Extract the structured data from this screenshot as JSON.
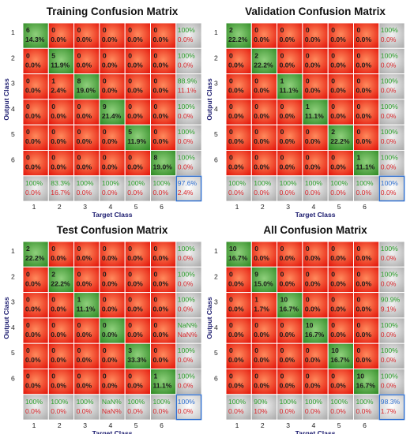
{
  "colors": {
    "correct": "#3a9b2c",
    "wrong": "#e8190c",
    "summary": "#b8b8b8",
    "overall_border": "#2e6fd0",
    "pct_green": "#2ca02c",
    "pct_red": "#d9262b",
    "axis_label": "#1a1a6e"
  },
  "chart_data": [
    {
      "type": "heatmap",
      "title": "Training Confusion Matrix",
      "xlabel": "Target Class",
      "ylabel": "Output Class",
      "x_ticks": [
        "1",
        "2",
        "3",
        "4",
        "5",
        "6"
      ],
      "y_ticks": [
        "1",
        "2",
        "3",
        "4",
        "5",
        "6"
      ],
      "counts": [
        [
          6,
          0,
          0,
          0,
          0,
          0
        ],
        [
          0,
          5,
          0,
          0,
          0,
          0
        ],
        [
          0,
          1,
          8,
          0,
          0,
          0
        ],
        [
          0,
          0,
          0,
          9,
          0,
          0
        ],
        [
          0,
          0,
          0,
          0,
          5,
          0
        ],
        [
          0,
          0,
          0,
          0,
          0,
          8
        ]
      ],
      "cell_pcts": [
        [
          "14.3%",
          "0.0%",
          "0.0%",
          "0.0%",
          "0.0%",
          "0.0%"
        ],
        [
          "0.0%",
          "11.9%",
          "0.0%",
          "0.0%",
          "0.0%",
          "0.0%"
        ],
        [
          "0.0%",
          "2.4%",
          "19.0%",
          "0.0%",
          "0.0%",
          "0.0%"
        ],
        [
          "0.0%",
          "0.0%",
          "0.0%",
          "21.4%",
          "0.0%",
          "0.0%"
        ],
        [
          "0.0%",
          "0.0%",
          "0.0%",
          "0.0%",
          "11.9%",
          "0.0%"
        ],
        [
          "0.0%",
          "0.0%",
          "0.0%",
          "0.0%",
          "0.0%",
          "19.0%"
        ]
      ],
      "row_summary": [
        [
          "100%",
          "0.0%"
        ],
        [
          "100%",
          "0.0%"
        ],
        [
          "88.9%",
          "11.1%"
        ],
        [
          "100%",
          "0.0%"
        ],
        [
          "100%",
          "0.0%"
        ],
        [
          "100%",
          "0.0%"
        ]
      ],
      "col_summary": [
        [
          "100%",
          "0.0%"
        ],
        [
          "83.3%",
          "16.7%"
        ],
        [
          "100%",
          "0.0%"
        ],
        [
          "100%",
          "0.0%"
        ],
        [
          "100%",
          "0.0%"
        ],
        [
          "100%",
          "0.0%"
        ]
      ],
      "overall": [
        "97.6%",
        "2.4%"
      ]
    },
    {
      "type": "heatmap",
      "title": "Validation Confusion Matrix",
      "xlabel": "Target Class",
      "ylabel": "Output Class",
      "x_ticks": [
        "1",
        "2",
        "3",
        "4",
        "5",
        "6"
      ],
      "y_ticks": [
        "1",
        "2",
        "3",
        "4",
        "5",
        "6"
      ],
      "counts": [
        [
          2,
          0,
          0,
          0,
          0,
          0
        ],
        [
          0,
          2,
          0,
          0,
          0,
          0
        ],
        [
          0,
          0,
          1,
          0,
          0,
          0
        ],
        [
          0,
          0,
          0,
          1,
          0,
          0
        ],
        [
          0,
          0,
          0,
          0,
          2,
          0
        ],
        [
          0,
          0,
          0,
          0,
          0,
          1
        ]
      ],
      "cell_pcts": [
        [
          "22.2%",
          "0.0%",
          "0.0%",
          "0.0%",
          "0.0%",
          "0.0%"
        ],
        [
          "0.0%",
          "22.2%",
          "0.0%",
          "0.0%",
          "0.0%",
          "0.0%"
        ],
        [
          "0.0%",
          "0.0%",
          "11.1%",
          "0.0%",
          "0.0%",
          "0.0%"
        ],
        [
          "0.0%",
          "0.0%",
          "0.0%",
          "11.1%",
          "0.0%",
          "0.0%"
        ],
        [
          "0.0%",
          "0.0%",
          "0.0%",
          "0.0%",
          "22.2%",
          "0.0%"
        ],
        [
          "0.0%",
          "0.0%",
          "0.0%",
          "0.0%",
          "0.0%",
          "11.1%"
        ]
      ],
      "row_summary": [
        [
          "100%",
          "0.0%"
        ],
        [
          "100%",
          "0.0%"
        ],
        [
          "100%",
          "0.0%"
        ],
        [
          "100%",
          "0.0%"
        ],
        [
          "100%",
          "0.0%"
        ],
        [
          "100%",
          "0.0%"
        ]
      ],
      "col_summary": [
        [
          "100%",
          "0.0%"
        ],
        [
          "100%",
          "0.0%"
        ],
        [
          "100%",
          "0.0%"
        ],
        [
          "100%",
          "0.0%"
        ],
        [
          "100%",
          "0.0%"
        ],
        [
          "100%",
          "0.0%"
        ]
      ],
      "overall": [
        "100%",
        "0.0%"
      ]
    },
    {
      "type": "heatmap",
      "title": "Test Confusion Matrix",
      "xlabel": "Target Class",
      "ylabel": "Output Class",
      "x_ticks": [
        "1",
        "2",
        "3",
        "4",
        "5",
        "6"
      ],
      "y_ticks": [
        "1",
        "2",
        "3",
        "4",
        "5",
        "6"
      ],
      "counts": [
        [
          2,
          0,
          0,
          0,
          0,
          0
        ],
        [
          0,
          2,
          0,
          0,
          0,
          0
        ],
        [
          0,
          0,
          1,
          0,
          0,
          0
        ],
        [
          0,
          0,
          0,
          0,
          0,
          0
        ],
        [
          0,
          0,
          0,
          0,
          3,
          0
        ],
        [
          0,
          0,
          0,
          0,
          0,
          1
        ]
      ],
      "cell_pcts": [
        [
          "22.2%",
          "0.0%",
          "0.0%",
          "0.0%",
          "0.0%",
          "0.0%"
        ],
        [
          "0.0%",
          "22.2%",
          "0.0%",
          "0.0%",
          "0.0%",
          "0.0%"
        ],
        [
          "0.0%",
          "0.0%",
          "11.1%",
          "0.0%",
          "0.0%",
          "0.0%"
        ],
        [
          "0.0%",
          "0.0%",
          "0.0%",
          "0.0%",
          "0.0%",
          "0.0%"
        ],
        [
          "0.0%",
          "0.0%",
          "0.0%",
          "0.0%",
          "33.3%",
          "0.0%"
        ],
        [
          "0.0%",
          "0.0%",
          "0.0%",
          "0.0%",
          "0.0%",
          "11.1%"
        ]
      ],
      "row_summary": [
        [
          "100%",
          "0.0%"
        ],
        [
          "100%",
          "0.0%"
        ],
        [
          "100%",
          "0.0%"
        ],
        [
          "NaN%",
          "NaN%"
        ],
        [
          "100%",
          "0.0%"
        ],
        [
          "100%",
          "0.0%"
        ]
      ],
      "col_summary": [
        [
          "100%",
          "0.0%"
        ],
        [
          "100%",
          "0.0%"
        ],
        [
          "100%",
          "0.0%"
        ],
        [
          "NaN%",
          "NaN%"
        ],
        [
          "100%",
          "0.0%"
        ],
        [
          "100%",
          "0.0%"
        ]
      ],
      "overall": [
        "100%",
        "0.0%"
      ]
    },
    {
      "type": "heatmap",
      "title": "All Confusion Matrix",
      "xlabel": "Target Class",
      "ylabel": "Output Class",
      "x_ticks": [
        "1",
        "2",
        "3",
        "4",
        "5",
        "6"
      ],
      "y_ticks": [
        "1",
        "2",
        "3",
        "4",
        "5",
        "6"
      ],
      "counts": [
        [
          10,
          0,
          0,
          0,
          0,
          0
        ],
        [
          0,
          9,
          0,
          0,
          0,
          0
        ],
        [
          0,
          1,
          10,
          0,
          0,
          0
        ],
        [
          0,
          0,
          0,
          10,
          0,
          0
        ],
        [
          0,
          0,
          0,
          0,
          10,
          0
        ],
        [
          0,
          0,
          0,
          0,
          0,
          10
        ]
      ],
      "cell_pcts": [
        [
          "16.7%",
          "0.0%",
          "0.0%",
          "0.0%",
          "0.0%",
          "0.0%"
        ],
        [
          "0.0%",
          "15.0%",
          "0.0%",
          "0.0%",
          "0.0%",
          "0.0%"
        ],
        [
          "0.0%",
          "1.7%",
          "16.7%",
          "0.0%",
          "0.0%",
          "0.0%"
        ],
        [
          "0.0%",
          "0.0%",
          "0.0%",
          "16.7%",
          "0.0%",
          "0.0%"
        ],
        [
          "0.0%",
          "0.0%",
          "0.0%",
          "0.0%",
          "16.7%",
          "0.0%"
        ],
        [
          "0.0%",
          "0.0%",
          "0.0%",
          "0.0%",
          "0.0%",
          "16.7%"
        ]
      ],
      "row_summary": [
        [
          "100%",
          "0.0%"
        ],
        [
          "100%",
          "0.0%"
        ],
        [
          "90.9%",
          "9.1%"
        ],
        [
          "100%",
          "0.0%"
        ],
        [
          "100%",
          "0.0%"
        ],
        [
          "100%",
          "0.0%"
        ]
      ],
      "col_summary": [
        [
          "100%",
          "0.0%"
        ],
        [
          "90%",
          "10%"
        ],
        [
          "100%",
          "0.0%"
        ],
        [
          "100%",
          "0.0%"
        ],
        [
          "100%",
          "0.0%"
        ],
        [
          "100%",
          "0.0%"
        ]
      ],
      "overall": [
        "98.3%",
        "1.7%"
      ]
    }
  ]
}
